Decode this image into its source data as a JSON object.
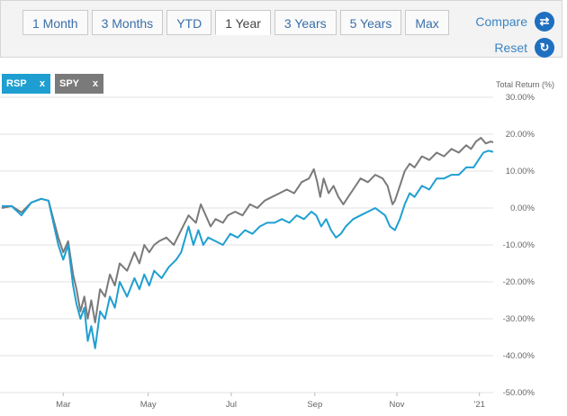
{
  "tabs": [
    "1 Month",
    "3 Months",
    "YTD",
    "1 Year",
    "3 Years",
    "5 Years",
    "Max"
  ],
  "active_tab": "1 Year",
  "compare_label": "Compare",
  "reset_label": "Reset",
  "chips": {
    "rsp": {
      "label": "RSP",
      "close": "x",
      "color": "#1f9fd1"
    },
    "spy": {
      "label": "SPY",
      "close": "x",
      "color": "#7a7a7a"
    }
  },
  "chart_data": {
    "type": "line",
    "title": "",
    "ylabel": "Total Return (%)",
    "ylim": [
      -50,
      30
    ],
    "xlim": [
      0,
      1
    ],
    "y_ticks": [
      30,
      20,
      10,
      0,
      -10,
      -20,
      -30,
      -40,
      -50
    ],
    "y_tick_labels": [
      "30.00%",
      "20.00%",
      "10.00%",
      "0.00%",
      "-10.00%",
      "-20.00%",
      "-30.00%",
      "-40.00%",
      "-50.00%"
    ],
    "x_ticks": [
      {
        "label": "Mar",
        "pos": 0.125
      },
      {
        "label": "May",
        "pos": 0.298
      },
      {
        "label": "Jul",
        "pos": 0.467
      },
      {
        "label": "Sep",
        "pos": 0.637
      },
      {
        "label": "Nov",
        "pos": 0.804
      },
      {
        "label": "'21",
        "pos": 0.972
      }
    ],
    "grid": true,
    "series": [
      {
        "name": "SPY",
        "color": "#7a7a7a",
        "points": [
          [
            0,
            0
          ],
          [
            0.02,
            0.5
          ],
          [
            0.04,
            -1.2
          ],
          [
            0.06,
            1.5
          ],
          [
            0.08,
            2.5
          ],
          [
            0.095,
            2.0
          ],
          [
            0.105,
            -3
          ],
          [
            0.115,
            -8
          ],
          [
            0.125,
            -12
          ],
          [
            0.135,
            -9
          ],
          [
            0.145,
            -18
          ],
          [
            0.152,
            -22
          ],
          [
            0.16,
            -28
          ],
          [
            0.168,
            -24
          ],
          [
            0.175,
            -30
          ],
          [
            0.182,
            -25
          ],
          [
            0.19,
            -31
          ],
          [
            0.2,
            -22
          ],
          [
            0.21,
            -24
          ],
          [
            0.22,
            -18
          ],
          [
            0.23,
            -21
          ],
          [
            0.24,
            -15
          ],
          [
            0.255,
            -17
          ],
          [
            0.27,
            -12
          ],
          [
            0.28,
            -15
          ],
          [
            0.29,
            -10
          ],
          [
            0.3,
            -12
          ],
          [
            0.31,
            -10
          ],
          [
            0.32,
            -9
          ],
          [
            0.335,
            -8
          ],
          [
            0.35,
            -10
          ],
          [
            0.365,
            -6
          ],
          [
            0.38,
            -2
          ],
          [
            0.395,
            -4
          ],
          [
            0.405,
            1
          ],
          [
            0.415,
            -2
          ],
          [
            0.425,
            -5
          ],
          [
            0.435,
            -3
          ],
          [
            0.45,
            -4
          ],
          [
            0.46,
            -2
          ],
          [
            0.475,
            -1
          ],
          [
            0.49,
            -2
          ],
          [
            0.505,
            1
          ],
          [
            0.52,
            0
          ],
          [
            0.535,
            2
          ],
          [
            0.55,
            3
          ],
          [
            0.565,
            4
          ],
          [
            0.58,
            5
          ],
          [
            0.595,
            4
          ],
          [
            0.61,
            7
          ],
          [
            0.625,
            8
          ],
          [
            0.635,
            10.5
          ],
          [
            0.642,
            7
          ],
          [
            0.648,
            3
          ],
          [
            0.655,
            8
          ],
          [
            0.665,
            4
          ],
          [
            0.675,
            6
          ],
          [
            0.685,
            3
          ],
          [
            0.695,
            1
          ],
          [
            0.705,
            3
          ],
          [
            0.715,
            5
          ],
          [
            0.73,
            8
          ],
          [
            0.745,
            7
          ],
          [
            0.76,
            9
          ],
          [
            0.775,
            8
          ],
          [
            0.785,
            6
          ],
          [
            0.795,
            1
          ],
          [
            0.8,
            2
          ],
          [
            0.81,
            6
          ],
          [
            0.82,
            10
          ],
          [
            0.83,
            12
          ],
          [
            0.84,
            11
          ],
          [
            0.855,
            14
          ],
          [
            0.87,
            13
          ],
          [
            0.885,
            15
          ],
          [
            0.9,
            14
          ],
          [
            0.915,
            16
          ],
          [
            0.93,
            15
          ],
          [
            0.945,
            17
          ],
          [
            0.955,
            16
          ],
          [
            0.965,
            18
          ],
          [
            0.975,
            19
          ],
          [
            0.985,
            17.5
          ],
          [
            0.995,
            18
          ],
          [
            1.0,
            17.8
          ]
        ]
      },
      {
        "name": "RSP",
        "color": "#1f9fd1",
        "points": [
          [
            0,
            0.5
          ],
          [
            0.02,
            0.5
          ],
          [
            0.04,
            -2
          ],
          [
            0.06,
            1.5
          ],
          [
            0.08,
            2.5
          ],
          [
            0.095,
            2
          ],
          [
            0.105,
            -4
          ],
          [
            0.115,
            -10
          ],
          [
            0.125,
            -14
          ],
          [
            0.135,
            -10
          ],
          [
            0.145,
            -21
          ],
          [
            0.152,
            -26
          ],
          [
            0.16,
            -30
          ],
          [
            0.168,
            -27
          ],
          [
            0.175,
            -36
          ],
          [
            0.182,
            -32
          ],
          [
            0.19,
            -38
          ],
          [
            0.2,
            -28
          ],
          [
            0.21,
            -30
          ],
          [
            0.22,
            -24
          ],
          [
            0.23,
            -27
          ],
          [
            0.24,
            -20
          ],
          [
            0.255,
            -24
          ],
          [
            0.27,
            -19
          ],
          [
            0.28,
            -22
          ],
          [
            0.29,
            -18
          ],
          [
            0.3,
            -21
          ],
          [
            0.31,
            -17
          ],
          [
            0.325,
            -19
          ],
          [
            0.34,
            -16
          ],
          [
            0.355,
            -14
          ],
          [
            0.365,
            -12
          ],
          [
            0.38,
            -5
          ],
          [
            0.39,
            -10
          ],
          [
            0.4,
            -6
          ],
          [
            0.41,
            -10
          ],
          [
            0.42,
            -8
          ],
          [
            0.435,
            -9
          ],
          [
            0.45,
            -10
          ],
          [
            0.465,
            -7
          ],
          [
            0.48,
            -8
          ],
          [
            0.495,
            -6
          ],
          [
            0.51,
            -7
          ],
          [
            0.525,
            -5
          ],
          [
            0.54,
            -4
          ],
          [
            0.555,
            -4
          ],
          [
            0.57,
            -3
          ],
          [
            0.585,
            -4
          ],
          [
            0.6,
            -2
          ],
          [
            0.615,
            -3
          ],
          [
            0.63,
            -1
          ],
          [
            0.64,
            -2
          ],
          [
            0.65,
            -5
          ],
          [
            0.66,
            -3
          ],
          [
            0.67,
            -6
          ],
          [
            0.68,
            -8
          ],
          [
            0.69,
            -7
          ],
          [
            0.7,
            -5
          ],
          [
            0.715,
            -3
          ],
          [
            0.73,
            -2
          ],
          [
            0.745,
            -1
          ],
          [
            0.76,
            0
          ],
          [
            0.77,
            -1
          ],
          [
            0.78,
            -2
          ],
          [
            0.79,
            -5
          ],
          [
            0.8,
            -6
          ],
          [
            0.81,
            -3
          ],
          [
            0.82,
            1
          ],
          [
            0.83,
            4
          ],
          [
            0.84,
            3
          ],
          [
            0.855,
            6
          ],
          [
            0.87,
            5
          ],
          [
            0.885,
            8
          ],
          [
            0.9,
            8
          ],
          [
            0.915,
            9
          ],
          [
            0.93,
            9
          ],
          [
            0.945,
            11
          ],
          [
            0.96,
            11
          ],
          [
            0.97,
            13
          ],
          [
            0.98,
            15
          ],
          [
            0.99,
            15.5
          ],
          [
            1.0,
            15.2
          ]
        ]
      }
    ]
  }
}
